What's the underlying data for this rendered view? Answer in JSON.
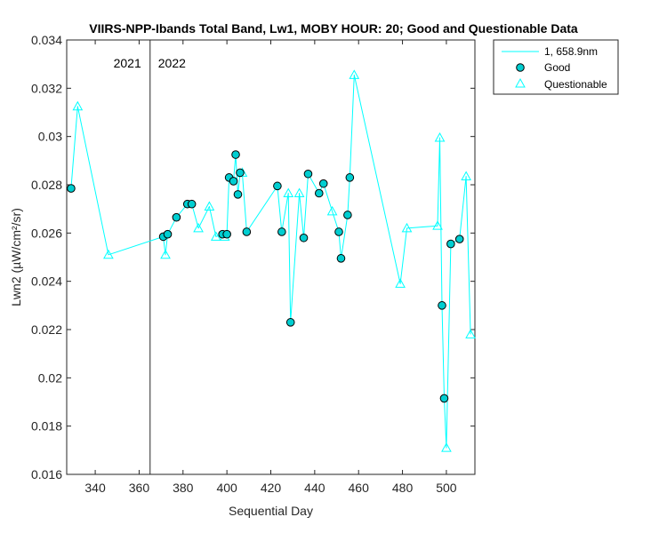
{
  "chart_data": {
    "type": "scatter",
    "title": "VIIRS-NPP-Ibands Total Band, Lw1, MOBY HOUR: 20;  Good and Questionable Data",
    "xlabel": "Sequential Day",
    "ylabel": "Lwn2 (µW/cm²/sr)",
    "xlim": [
      327,
      513
    ],
    "ylim": [
      0.016,
      0.034
    ],
    "xticks": [
      340,
      360,
      380,
      400,
      420,
      440,
      460,
      480,
      500
    ],
    "yticks": [
      0.016,
      0.018,
      0.02,
      0.022,
      0.024,
      0.026,
      0.028,
      0.03,
      0.032,
      0.034
    ],
    "xtick_labels": [
      "340",
      "360",
      "380",
      "400",
      "420",
      "440",
      "460",
      "480",
      "500"
    ],
    "ytick_labels": [
      "0.016",
      "0.018",
      "0.02",
      "0.022",
      "0.024",
      "0.026",
      "0.028",
      "0.03",
      "0.032",
      "0.034"
    ],
    "grid": false,
    "legend_position": "outside-top-right",
    "year_divider": {
      "x": 365,
      "left_label": "2021",
      "right_label": "2022"
    },
    "line_series": {
      "name": "1, 658.9nm",
      "color": "#00ffff",
      "x": [
        329,
        332,
        346,
        371,
        372,
        373,
        377,
        382,
        384,
        387,
        392,
        395,
        398,
        399,
        400,
        401,
        403,
        404,
        405,
        406,
        407,
        409,
        423,
        425,
        428,
        429,
        433,
        435,
        437,
        442,
        444,
        448,
        451,
        452,
        455,
        456,
        458,
        479,
        482,
        496,
        497,
        498,
        499,
        500,
        502,
        506,
        509,
        511
      ],
      "y": [
        0.02785,
        0.03125,
        0.0251,
        0.02585,
        0.0251,
        0.02595,
        0.02665,
        0.0272,
        0.0272,
        0.0262,
        0.0271,
        0.02585,
        0.02595,
        0.02585,
        0.02595,
        0.0283,
        0.02815,
        0.02925,
        0.0276,
        0.0285,
        0.0285,
        0.02605,
        0.02795,
        0.02605,
        0.02765,
        0.0223,
        0.02765,
        0.0258,
        0.02845,
        0.02765,
        0.02805,
        0.0269,
        0.02605,
        0.02495,
        0.02675,
        0.0283,
        0.03255,
        0.0239,
        0.0262,
        0.0263,
        0.02995,
        0.023,
        0.01915,
        0.0171,
        0.02555,
        0.02575,
        0.02835,
        0.0218
      ]
    },
    "series": [
      {
        "name": "Good",
        "marker": "circle",
        "face_color": "#00ced1",
        "edge_color": "#000000",
        "x": [
          329,
          371,
          373,
          377,
          382,
          384,
          398,
          400,
          401,
          403,
          404,
          405,
          406,
          409,
          423,
          425,
          429,
          435,
          437,
          442,
          444,
          451,
          452,
          455,
          456,
          498,
          499,
          502,
          506
        ],
        "y": [
          0.02785,
          0.02585,
          0.02595,
          0.02665,
          0.0272,
          0.0272,
          0.02595,
          0.02595,
          0.0283,
          0.02815,
          0.02925,
          0.0276,
          0.0285,
          0.02605,
          0.02795,
          0.02605,
          0.0223,
          0.0258,
          0.02845,
          0.02765,
          0.02805,
          0.02605,
          0.02495,
          0.02675,
          0.0283,
          0.023,
          0.01915,
          0.02555,
          0.02575
        ]
      },
      {
        "name": "Questionable",
        "marker": "triangle",
        "face_color": "none",
        "edge_color": "#00ffff",
        "x": [
          332,
          346,
          372,
          387,
          392,
          395,
          399,
          407,
          428,
          433,
          448,
          458,
          479,
          482,
          496,
          497,
          500,
          509,
          511
        ],
        "y": [
          0.03125,
          0.0251,
          0.0251,
          0.0262,
          0.0271,
          0.02585,
          0.02585,
          0.0285,
          0.02765,
          0.02765,
          0.0269,
          0.03255,
          0.0239,
          0.0262,
          0.0263,
          0.02995,
          0.0171,
          0.02835,
          0.0218
        ]
      }
    ]
  }
}
